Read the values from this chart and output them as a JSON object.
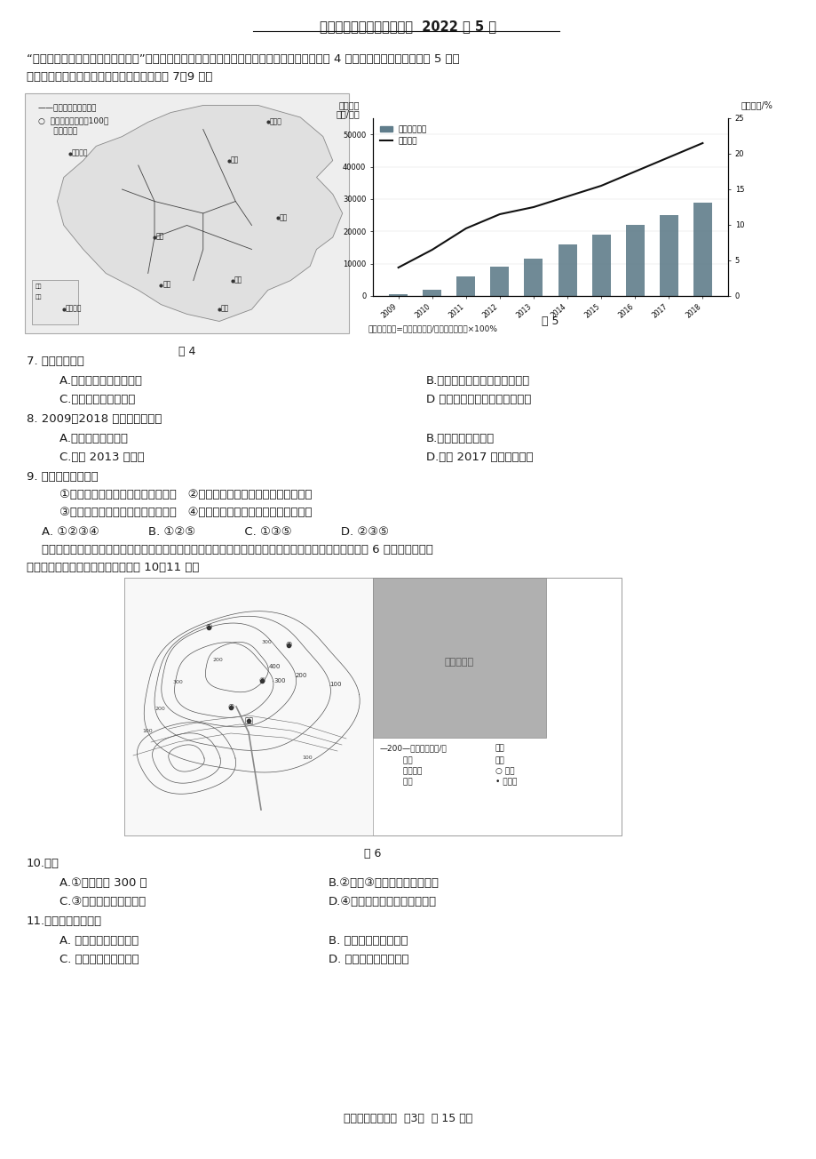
{
  "title": "北京市第八十中学地理试卷  2022 年 5 月",
  "page_footer": "（八年级地理期中  第3页  共 15 页）",
  "bg_color": "#ffffff",
  "text_color": "#1a1a1a",
  "intro_text1": "“沧桑巨变七十载，民族复兴铸辉煌”，高速铁路承担客运服务，发展迅速，已成为国家名片，图 4 为中国高速铁路分布图，图 5 为中",
  "intro_text2": "国高铁运营里程及占比统计图，读图，完成第 7～9 题，",
  "q7_text": "7. 我国高速铁路",
  "q7_a": "    A.在东北地区分布最稀疏",
  "q7_b": "B.在地势第一级阶梯上集中分布",
  "q7_c": "    C.在平原地区分布均匀",
  "q7_d": "D 稠密区与城市密集区分布一致",
  "q8_text": "8. 2009～2018 年间，我国高铁",
  "q8_a": "    A.运营里程持续增长",
  "q8_b": "B.运营里程匀速增长",
  "q8_c": "    C.占比 2013 年最低",
  "q8_d": "D.占比 2017 年后增长最快",
  "q9_text": "9. 我国发展高铁可以",
  "q9_opt1": "    ①加快矿产外运，发挥资源大国优势   ②推动技术研发，促进现代制造业发展",
  "q9_opt2": "    ③加强城乡联系，带动经济全面发展   ④促进对外联系，加强国际交流与合作",
  "q9_choices": "    A. ①②③④             B. ①②⑤             C. ①③⑤             D. ②③⑤",
  "intro2_1": "    为了解浙江省安吉县昔日污染严重的余村，转变为绿水青山美丽乡村的过程，某校生开展了研学考察，图 6 为余村及周边等",
  "intro2_2": "高线地形图和景观图，读图，完成第 10～11 题，",
  "q10_text": "10.图中",
  "q10_a": "    A.①地海拔约 300 米",
  "q10_b": "B.②地比③地海拔低、坡度更缓",
  "q10_c": "    C.③地位于山脊、坡度陡",
  "q10_d": "D.④地位于山谷，可见余村全貌",
  "q11_text": "11.与杭州相比，余村",
  "q11_a": "    A. 规模较大，高楼林立",
  "q11_b": "B. 公路纵横、车流不息",
  "q11_c": "    C. 港口众多，商贸发达",
  "q11_d": "D. 农田片片，竹林满山",
  "fig4_label": "图 4",
  "fig5_label": "图 5",
  "fig6_label": "图 6",
  "chart_ylabel_left": "高铁运营\n里程/千米",
  "chart_ylabel_right": "高铁占比/%",
  "chart_legend1": "高铁运营里程",
  "chart_legend2": "高铁占比",
  "chart_note": "注：高铁占比=高铁运营里程/铁路运营总里程×100%",
  "bar_years": [
    "2009",
    "2010",
    "2011",
    "2012",
    "2013",
    "2014",
    "2015",
    "2016",
    "2017",
    "2018"
  ],
  "bar_values": [
    650,
    2000,
    6000,
    9000,
    11500,
    16000,
    19000,
    22000,
    25000,
    29000
  ],
  "line_values": [
    4.0,
    6.5,
    9.5,
    11.5,
    12.5,
    14.0,
    15.5,
    17.5,
    19.5,
    21.5
  ],
  "bar_color": "#607d8b",
  "line_color": "#111111",
  "map_legend_lines": [
    "——高速铁路（含规划）",
    "○  市辖区非农业人口100万",
    "      以上的城市"
  ],
  "fig6_legend": [
    "—200—等高线及数值/米",
    "         省道",
    "         一般道路",
    "         溪流"
  ],
  "fig6_legend_right": [
    "景点",
    "饭店",
    "○ 村镇",
    "• 考察点"
  ]
}
